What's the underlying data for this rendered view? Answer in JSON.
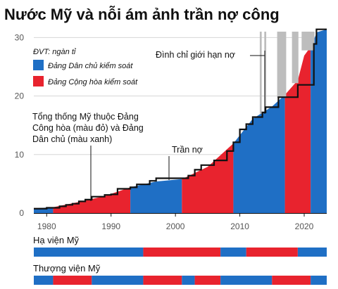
{
  "title": "Nước Mỹ và nỗi ám ảnh trần nợ công",
  "unit_label": "ĐVT: ngàn tỉ",
  "legend": [
    {
      "label": "Đảng Dân chủ kiểm soát",
      "color": "#1f6fc5"
    },
    {
      "label": "Đảng Cộng hòa kiểm soát",
      "color": "#e8232e"
    }
  ],
  "annotations": {
    "presidents": [
      "Tổng thống Mỹ thuộc Đảng",
      "Công hòa (màu đỏ) và Đảng",
      "Dân chủ (màu xanh)"
    ],
    "ceiling": "Trần nợ",
    "shutdown": "Đình chỉ giới hạn nợ"
  },
  "colors": {
    "dem": "#1f6fc5",
    "rep": "#e8232e",
    "suspend": "#bdbdbd",
    "ceiling_line": "#111111"
  },
  "chart_data": {
    "type": "area",
    "xlim": [
      1978,
      2023.5
    ],
    "ylim": [
      0,
      31
    ],
    "yticks": [
      0,
      10,
      20,
      30
    ],
    "xticks": [
      1980,
      1990,
      2000,
      2010,
      2020
    ],
    "grid": "horizontal",
    "debt": [
      [
        1978,
        0.8
      ],
      [
        1981,
        1.0
      ],
      [
        1985,
        1.9
      ],
      [
        1989,
        2.9
      ],
      [
        1993,
        4.4
      ],
      [
        1997,
        5.4
      ],
      [
        2001,
        5.8
      ],
      [
        2005,
        7.9
      ],
      [
        2009,
        11.9
      ],
      [
        2012,
        16.1
      ],
      [
        2015,
        18.2
      ],
      [
        2017,
        20.2
      ],
      [
        2019,
        22.7
      ],
      [
        2020,
        26.9
      ],
      [
        2021,
        28.4
      ],
      [
        2022,
        30.9
      ],
      [
        2023.5,
        31.4
      ]
    ],
    "ceiling": [
      [
        1978,
        0.75
      ],
      [
        1980,
        0.9
      ],
      [
        1982,
        1.15
      ],
      [
        1983,
        1.4
      ],
      [
        1984,
        1.6
      ],
      [
        1985,
        2.0
      ],
      [
        1986,
        2.3
      ],
      [
        1987,
        2.8
      ],
      [
        1989,
        3.1
      ],
      [
        1990,
        3.2
      ],
      [
        1991,
        4.15
      ],
      [
        1993,
        4.4
      ],
      [
        1994,
        4.9
      ],
      [
        1996,
        5.5
      ],
      [
        1997,
        5.95
      ],
      [
        2002,
        6.4
      ],
      [
        2003,
        7.4
      ],
      [
        2004,
        8.2
      ],
      [
        2006,
        9.0
      ],
      [
        2008,
        10.6
      ],
      [
        2009,
        12.1
      ],
      [
        2010,
        14.3
      ],
      [
        2011,
        15.2
      ],
      [
        2012,
        16.4
      ],
      [
        2013.5,
        17.2
      ],
      [
        2014,
        18.1
      ],
      [
        2015.8,
        18.1
      ],
      [
        2016,
        19.8
      ],
      [
        2019,
        21.9
      ],
      [
        2021.5,
        28.9
      ],
      [
        2021.9,
        31.4
      ],
      [
        2023.5,
        31.4
      ]
    ],
    "presidents": [
      {
        "start": 1978,
        "end": 1981,
        "party": "D"
      },
      {
        "start": 1981,
        "end": 1993,
        "party": "R"
      },
      {
        "start": 1993,
        "end": 2001,
        "party": "D"
      },
      {
        "start": 2001,
        "end": 2009,
        "party": "R"
      },
      {
        "start": 2009,
        "end": 2017,
        "party": "D"
      },
      {
        "start": 2017,
        "end": 2021,
        "party": "R"
      },
      {
        "start": 2021,
        "end": 2023.5,
        "party": "D"
      }
    ],
    "suspensions": [
      {
        "start": 2013.1,
        "end": 2013.4
      },
      {
        "start": 2013.8,
        "end": 2014.1
      },
      {
        "start": 2015.8,
        "end": 2017.2
      },
      {
        "start": 2018.1,
        "end": 2019.1
      },
      {
        "start": 2019.6,
        "end": 2021.6
      }
    ],
    "house": {
      "label": "Hạ viện Mỹ",
      "segments": [
        {
          "start": 1978,
          "end": 1995,
          "party": "D"
        },
        {
          "start": 1995,
          "end": 2007,
          "party": "R"
        },
        {
          "start": 2007,
          "end": 2011,
          "party": "D"
        },
        {
          "start": 2011,
          "end": 2019,
          "party": "R"
        },
        {
          "start": 2019,
          "end": 2023.5,
          "party": "D"
        }
      ]
    },
    "senate": {
      "label": "Thượng viện Mỹ",
      "segments": [
        {
          "start": 1978,
          "end": 1981,
          "party": "D"
        },
        {
          "start": 1981,
          "end": 1987,
          "party": "R"
        },
        {
          "start": 1987,
          "end": 1995,
          "party": "D"
        },
        {
          "start": 1995,
          "end": 2001,
          "party": "R"
        },
        {
          "start": 2001,
          "end": 2003,
          "party": "D"
        },
        {
          "start": 2003,
          "end": 2007,
          "party": "R"
        },
        {
          "start": 2007,
          "end": 2015,
          "party": "D"
        },
        {
          "start": 2015,
          "end": 2021,
          "party": "R"
        },
        {
          "start": 2021,
          "end": 2023.5,
          "party": "D"
        }
      ]
    }
  }
}
